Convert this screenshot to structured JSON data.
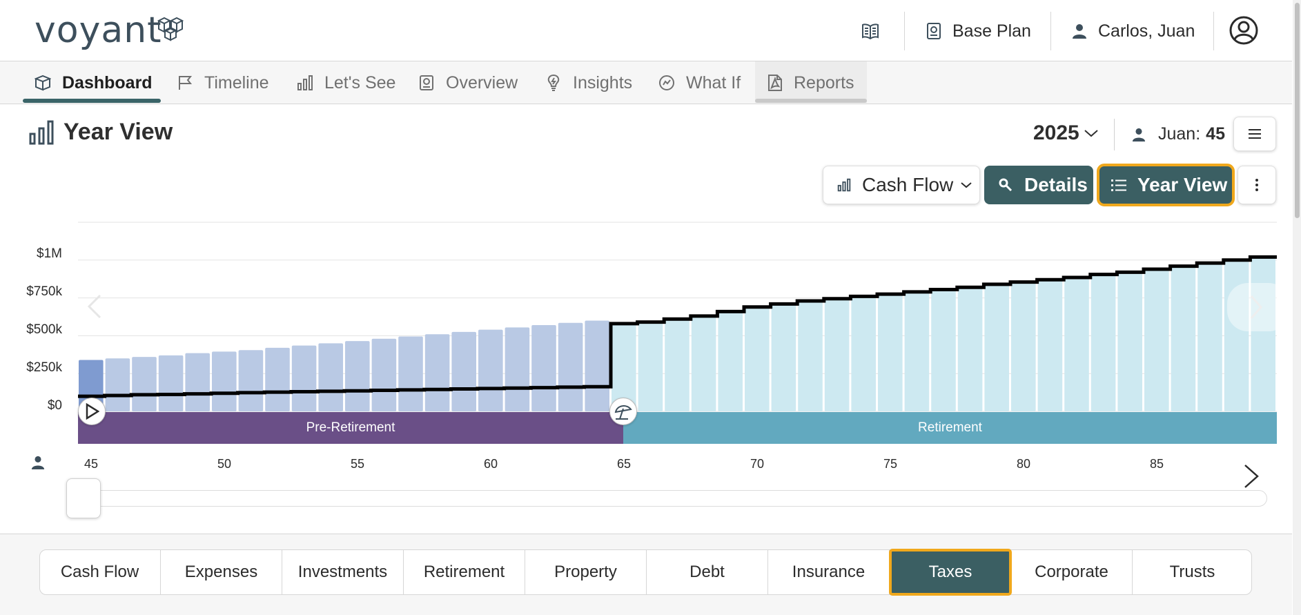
{
  "app": {
    "logo_text": "voyant"
  },
  "header": {
    "plan_label": "Base Plan",
    "user_label": "Carlos, Juan"
  },
  "tabs": [
    {
      "label": "Dashboard",
      "active": true
    },
    {
      "label": "Timeline"
    },
    {
      "label": "Let's See"
    },
    {
      "label": "Overview"
    },
    {
      "label": "Insights"
    },
    {
      "label": "What If"
    },
    {
      "label": "Reports"
    }
  ],
  "page": {
    "title": "Year View",
    "year": "2025",
    "person_name": "Juan:",
    "person_age": "45"
  },
  "toolbar": {
    "cashflow_label": "Cash Flow",
    "details_label": "Details",
    "yearview_label": "Year View"
  },
  "chart_data": {
    "type": "bar",
    "y_tick_labels": [
      "$0",
      "$250k",
      "$500k",
      "$750k",
      "$1M"
    ],
    "ylim": [
      0,
      1250000
    ],
    "x": [
      45,
      46,
      47,
      48,
      49,
      50,
      51,
      52,
      53,
      54,
      55,
      56,
      57,
      58,
      59,
      60,
      61,
      62,
      63,
      64,
      65,
      66,
      67,
      68,
      69,
      70,
      71,
      72,
      73,
      74,
      75,
      76,
      77,
      78,
      79,
      80,
      81,
      82,
      83,
      84,
      85,
      86,
      87,
      88,
      89
    ],
    "x_tick_labels": [
      "45",
      "50",
      "55",
      "60",
      "65",
      "70",
      "75",
      "80",
      "85"
    ],
    "series": [
      {
        "values": [
          340000,
          350000,
          360000,
          370000,
          385000,
          395000,
          405000,
          420000,
          435000,
          450000,
          465000,
          480000,
          495000,
          510000,
          525000,
          540000,
          555000,
          570000,
          585000,
          600000,
          580000,
          590000,
          610000,
          630000,
          660000,
          690000,
          710000,
          730000,
          745000,
          760000,
          775000,
          790000,
          805000,
          820000,
          840000,
          855000,
          870000,
          885000,
          905000,
          920000,
          940000,
          960000,
          980000,
          1000000,
          1020000
        ]
      },
      {
        "values": [
          100000,
          105000,
          110000,
          112000,
          116000,
          120000,
          124000,
          127000,
          130000,
          133000,
          136000,
          139000,
          142000,
          145000,
          148000,
          151000,
          154000,
          157000,
          160000,
          163000,
          580000,
          590000,
          610000,
          630000,
          660000,
          690000,
          710000,
          730000,
          745000,
          760000,
          775000,
          790000,
          805000,
          820000,
          840000,
          855000,
          870000,
          885000,
          905000,
          920000,
          940000,
          960000,
          980000,
          1000000,
          1020000
        ]
      }
    ],
    "phases": [
      {
        "label": "Pre-Retirement",
        "color": "#6a4f87"
      },
      {
        "label": "Retirement",
        "color": "#62a9bf"
      }
    ],
    "grid": true,
    "legend": "none"
  },
  "bottom_tabs": [
    {
      "label": "Cash Flow"
    },
    {
      "label": "Expenses"
    },
    {
      "label": "Investments"
    },
    {
      "label": "Retirement"
    },
    {
      "label": "Property"
    },
    {
      "label": "Debt"
    },
    {
      "label": "Insurance"
    },
    {
      "label": "Taxes",
      "active": true
    },
    {
      "label": "Corporate"
    },
    {
      "label": "Trusts"
    }
  ],
  "colors": {
    "accent": "#3b5f63",
    "highlight": "#f0a81c",
    "pre_bar": "#b9c9e4",
    "ret_bar": "#cde9f1"
  }
}
